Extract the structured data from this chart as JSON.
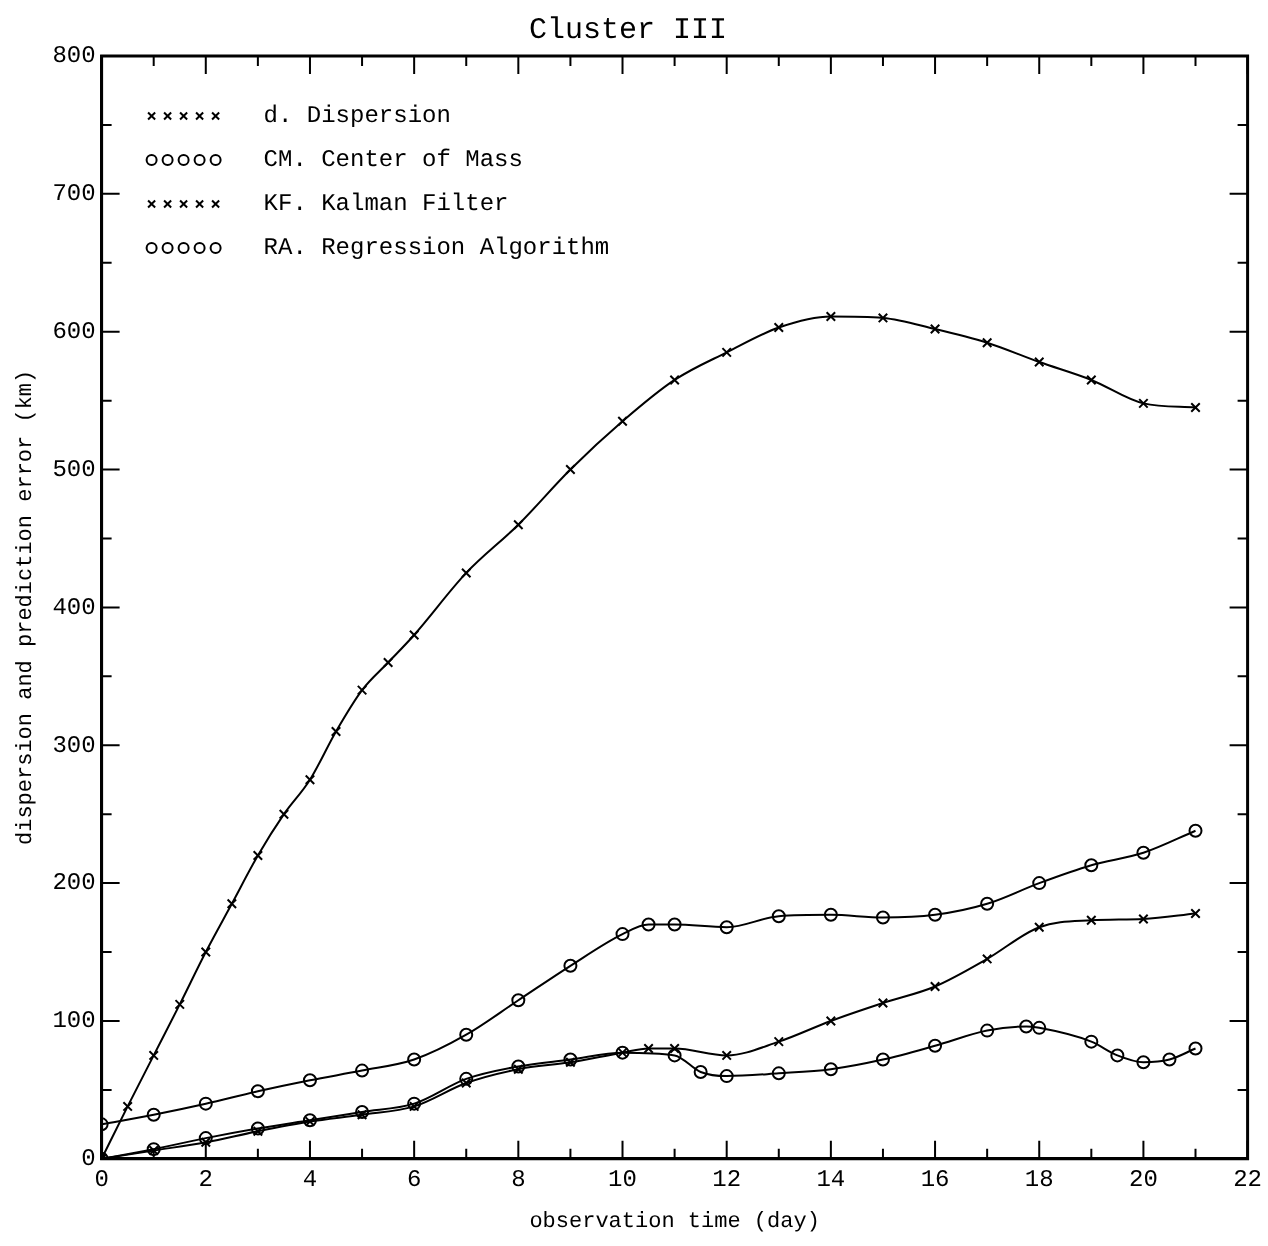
{
  "chart_data": {
    "type": "line",
    "title": "Cluster III",
    "xlabel": "observation time (day)",
    "ylabel": "dispersion and prediction error (km)",
    "xlim": [
      0,
      22
    ],
    "ylim": [
      0,
      800
    ],
    "xticks": [
      0,
      {
        "value": 1,
        "label": null
      },
      2,
      {
        "value": 3,
        "label": null
      },
      4,
      {
        "value": 5,
        "label": null
      },
      6,
      {
        "value": 7,
        "label": null
      },
      8,
      {
        "value": 9,
        "label": null
      },
      10,
      {
        "value": 11,
        "label": null
      },
      12,
      {
        "value": 13,
        "label": null
      },
      14,
      {
        "value": 15,
        "label": null
      },
      16,
      {
        "value": 17,
        "label": null
      },
      18,
      {
        "value": 19,
        "label": null
      },
      20,
      {
        "value": 21,
        "label": null
      },
      22
    ],
    "yticks": [
      0,
      {
        "value": 50,
        "label": null
      },
      100,
      {
        "value": 150,
        "label": null
      },
      200,
      {
        "value": 250,
        "label": null
      },
      300,
      {
        "value": 350,
        "label": null
      },
      400,
      {
        "value": 450,
        "label": null
      },
      500,
      {
        "value": 550,
        "label": null
      },
      600,
      {
        "value": 650,
        "label": null
      },
      700,
      {
        "value": 750,
        "label": null
      },
      800
    ],
    "grid": false,
    "legend": "top left",
    "line_style": "solid",
    "series": [
      {
        "name": "d. Dispersion",
        "color": "#000000",
        "marker": "cross",
        "x": [
          0,
          0.5,
          1,
          1.5,
          2,
          2.5,
          3,
          3.5,
          4,
          4.5,
          5,
          5.5,
          6,
          7,
          8,
          9,
          10,
          11,
          12,
          13,
          14,
          15,
          16,
          17,
          18,
          19,
          20,
          21
        ],
        "values": [
          0,
          38,
          75,
          112,
          150,
          185,
          220,
          250,
          275,
          310,
          340,
          360,
          380,
          425,
          460,
          500,
          535,
          565,
          585,
          603,
          611,
          610,
          602,
          592,
          578,
          565,
          548,
          545
        ]
      },
      {
        "name": "CM. Center of Mass",
        "color": "#000000",
        "marker": "circle",
        "x": [
          0,
          1,
          2,
          3,
          4,
          5,
          6,
          7,
          8,
          9,
          10,
          10.5,
          11,
          12,
          13,
          14,
          15,
          16,
          17,
          18,
          19,
          20,
          21
        ],
        "values": [
          25,
          32,
          40,
          49,
          57,
          64,
          72,
          90,
          115,
          140,
          163,
          170,
          170,
          168,
          176,
          177,
          175,
          177,
          185,
          200,
          213,
          222,
          238
        ]
      },
      {
        "name": "KF. Kalman Filter",
        "color": "#000000",
        "marker": "cross",
        "x": [
          0,
          1,
          2,
          3,
          4,
          5,
          6,
          7,
          8,
          9,
          10,
          10.5,
          11,
          12,
          13,
          14,
          15,
          16,
          17,
          18,
          19,
          20,
          21
        ],
        "values": [
          0,
          6,
          12,
          20,
          27,
          32,
          38,
          55,
          65,
          70,
          77,
          80,
          80,
          75,
          85,
          100,
          113,
          125,
          145,
          168,
          173,
          174,
          178
        ]
      },
      {
        "name": "RA. Regression Algorithm",
        "color": "#000000",
        "marker": "circle",
        "x": [
          0,
          1,
          2,
          3,
          4,
          5,
          6,
          7,
          8,
          9,
          10,
          11,
          11.5,
          12,
          13,
          14,
          15,
          16,
          17,
          17.75,
          18,
          19,
          19.5,
          20,
          20.5,
          21
        ],
        "values": [
          0,
          7,
          15,
          22,
          28,
          34,
          40,
          58,
          67,
          72,
          77,
          75,
          63,
          60,
          62,
          65,
          72,
          82,
          93,
          96,
          95,
          85,
          75,
          70,
          72,
          80
        ]
      }
    ]
  }
}
